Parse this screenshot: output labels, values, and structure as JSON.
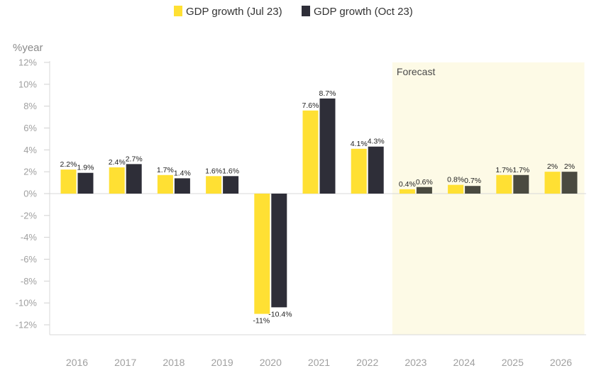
{
  "chart_data": {
    "type": "bar",
    "ylabel": "%year",
    "ylim": [
      -12,
      12
    ],
    "ytick_values": [
      12,
      10,
      8,
      6,
      4,
      2,
      0,
      -2,
      -4,
      -6,
      -8,
      -10,
      -12
    ],
    "ytick_labels": [
      "12%",
      "10%",
      "8%",
      "6%",
      "4%",
      "2%",
      "0%",
      "-2%",
      "-4%",
      "-6%",
      "-8%",
      "-10%",
      "-12%"
    ],
    "categories": [
      "2016",
      "2017",
      "2018",
      "2019",
      "2020",
      "2021",
      "2022",
      "2023",
      "2024",
      "2025",
      "2026"
    ],
    "legend_position": "top-center",
    "grid": false,
    "forecast": {
      "label": "Forecast",
      "from_category": "2023",
      "to_category": "2026",
      "color": "#fdfae6"
    },
    "series": [
      {
        "name": "GDP growth (Jul 23)",
        "color": "#ffe033",
        "values": [
          2.2,
          2.4,
          1.7,
          1.6,
          -11,
          7.6,
          4.1,
          0.4,
          0.8,
          1.7,
          2
        ],
        "labels": [
          "2.2%",
          "2.4%",
          "1.7%",
          "1.6%",
          "-11%",
          "7.6%",
          "4.1%",
          "0.4%",
          "0.8%",
          "1.7%",
          "2%"
        ]
      },
      {
        "name": "GDP growth (Oct 23)",
        "color": "#2e2e38",
        "forecast_color": "#4a4a40",
        "values": [
          1.9,
          2.7,
          1.4,
          1.6,
          -10.4,
          8.7,
          4.3,
          0.6,
          0.7,
          1.7,
          2
        ],
        "labels": [
          "1.9%",
          "2.7%",
          "1.4%",
          "1.6%",
          "-10.4%",
          "8.7%",
          "4.3%",
          "0.6%",
          "0.7%",
          "1.7%",
          "2%"
        ]
      }
    ]
  }
}
